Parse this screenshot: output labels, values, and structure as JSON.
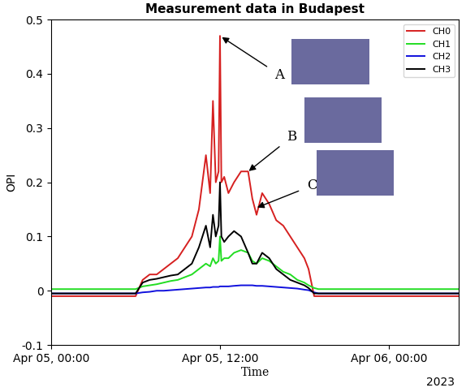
{
  "chart_data": {
    "type": "line",
    "title": "Measurement data in Budapest",
    "x_label": "Time",
    "y_label": "OPI",
    "annotations": [
      "A",
      "B",
      "C",
      "2023"
    ],
    "x": [
      "2023-04-05T00:00",
      "2023-04-05T06:00",
      "2023-04-05T06:30",
      "2023-04-05T07:00",
      "2023-04-05T07:30",
      "2023-04-05T08:00",
      "2023-04-05T08:30",
      "2023-04-05T09:00",
      "2023-04-05T09:30",
      "2023-04-05T10:00",
      "2023-04-05T10:30",
      "2023-04-05T11:00",
      "2023-04-05T11:18",
      "2023-04-05T11:30",
      "2023-04-05T11:42",
      "2023-04-05T11:54",
      "2023-04-05T12:00",
      "2023-04-05T12:06",
      "2023-04-05T12:18",
      "2023-04-05T12:36",
      "2023-04-05T13:00",
      "2023-04-05T13:30",
      "2023-04-05T14:00",
      "2023-04-05T14:18",
      "2023-04-05T14:36",
      "2023-04-05T15:00",
      "2023-04-05T15:30",
      "2023-04-05T16:00",
      "2023-04-05T16:30",
      "2023-04-05T17:00",
      "2023-04-05T17:30",
      "2023-04-05T18:00",
      "2023-04-05T18:18",
      "2023-04-05T18:42",
      "2023-04-05T19:00",
      "2023-04-06T05:00"
    ],
    "series": [
      {
        "name": "CH0",
        "color": "#d62020",
        "values": [
          -0.01,
          -0.01,
          0.02,
          0.03,
          0.03,
          0.04,
          0.05,
          0.06,
          0.08,
          0.1,
          0.15,
          0.25,
          0.18,
          0.35,
          0.2,
          0.22,
          0.47,
          0.2,
          0.21,
          0.18,
          0.2,
          0.22,
          0.22,
          0.17,
          0.14,
          0.18,
          0.16,
          0.13,
          0.12,
          0.1,
          0.08,
          0.06,
          0.04,
          -0.01,
          -0.01,
          -0.01
        ]
      },
      {
        "name": "CH1",
        "color": "#22dd22",
        "values": [
          0.003,
          0.003,
          0.008,
          0.01,
          0.012,
          0.015,
          0.018,
          0.02,
          0.025,
          0.03,
          0.04,
          0.05,
          0.045,
          0.06,
          0.05,
          0.055,
          0.1,
          0.055,
          0.06,
          0.06,
          0.07,
          0.075,
          0.07,
          0.055,
          0.05,
          0.06,
          0.055,
          0.045,
          0.035,
          0.03,
          0.02,
          0.015,
          0.01,
          0.005,
          0.003,
          0.003
        ]
      },
      {
        "name": "CH2",
        "color": "#1010dd",
        "values": [
          -0.005,
          -0.005,
          -0.003,
          -0.002,
          0,
          0,
          0.001,
          0.002,
          0.003,
          0.004,
          0.005,
          0.006,
          0.006,
          0.007,
          0.007,
          0.007,
          0.008,
          0.008,
          0.008,
          0.008,
          0.009,
          0.01,
          0.01,
          0.01,
          0.009,
          0.009,
          0.008,
          0.007,
          0.006,
          0.005,
          0.004,
          0.002,
          0.001,
          -0.003,
          -0.005,
          -0.005
        ]
      },
      {
        "name": "CH3",
        "color": "#000000",
        "values": [
          -0.005,
          -0.005,
          0.015,
          0.02,
          0.022,
          0.025,
          0.028,
          0.03,
          0.04,
          0.05,
          0.08,
          0.12,
          0.08,
          0.14,
          0.1,
          0.12,
          0.2,
          0.1,
          0.09,
          0.1,
          0.11,
          0.1,
          0.07,
          0.05,
          0.05,
          0.07,
          0.06,
          0.04,
          0.03,
          0.02,
          0.015,
          0.01,
          0.005,
          -0.005,
          -0.005,
          -0.005
        ]
      }
    ],
    "xlim": [
      "2023-04-05T00:00",
      "2023-04-06T05:00"
    ],
    "xticks": [
      {
        "value": "2023-04-05T00:00",
        "label": "Apr 05, 00:00"
      },
      {
        "value": "2023-04-05T12:00",
        "label": "Apr 05, 12:00"
      },
      {
        "value": "2023-04-06T00:00",
        "label": "Apr 06, 00:00"
      }
    ],
    "ylim": [
      -0.1,
      0.5
    ],
    "yticks": [
      -0.1,
      0,
      0.1,
      0.2,
      0.3,
      0.4,
      0.5
    ],
    "grid": false,
    "legend": "upper right"
  }
}
